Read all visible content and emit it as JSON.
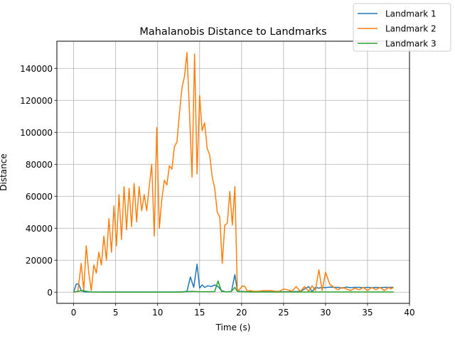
{
  "chart_data": {
    "type": "line",
    "title": "Mahalanobis Distance to Landmarks",
    "xlabel": "Time (s)",
    "ylabel": "Distance",
    "xlim": [
      -2,
      40
    ],
    "ylim": [
      -7000,
      157000
    ],
    "xticks": [
      0,
      5,
      10,
      15,
      20,
      25,
      30,
      35,
      40
    ],
    "yticks": [
      0,
      20000,
      40000,
      60000,
      80000,
      100000,
      120000,
      140000
    ],
    "grid": true,
    "legend": "top-right",
    "series": [
      {
        "name": "Landmark 1",
        "color": "#1f77b4",
        "x": [
          0,
          0.3,
          0.6,
          0.9,
          1.2,
          1.5,
          2,
          3,
          4,
          5,
          6,
          7,
          8,
          9,
          10,
          11,
          12,
          13,
          13.5,
          13.9,
          14.3,
          14.7,
          15.0,
          15.3,
          15.6,
          16.0,
          16.4,
          16.8,
          17.2,
          17.6,
          18.0,
          18.4,
          18.8,
          19.2,
          19.5,
          19.8,
          20.2,
          20.6,
          21,
          22,
          23,
          24,
          25,
          26,
          27,
          27.5,
          28,
          28.4,
          28.8,
          29.2,
          29.6,
          30,
          30.5,
          31,
          31.5,
          32,
          32.5,
          33,
          33.5,
          34,
          34.5,
          35,
          35.5,
          36,
          36.5,
          37,
          37.5,
          37.8,
          38.1
        ],
        "y": [
          0,
          5000,
          5200,
          1000,
          200,
          100,
          100,
          100,
          100,
          100,
          100,
          100,
          100,
          100,
          100,
          100,
          100,
          200,
          500,
          9500,
          3000,
          17500,
          2500,
          4500,
          3000,
          4000,
          3500,
          4500,
          3500,
          1000,
          300,
          200,
          500,
          11000,
          700,
          500,
          400,
          300,
          300,
          200,
          200,
          200,
          300,
          300,
          500,
          2000,
          3500,
          300,
          3000,
          2500,
          3000,
          2800,
          3200,
          3000,
          3000,
          2500,
          3200,
          2800,
          3000,
          3000,
          2800,
          3000,
          2800,
          3000,
          2800,
          3000,
          3000,
          3000,
          3000
        ]
      },
      {
        "name": "Landmark 2",
        "color": "#ff7f0e",
        "x": [
          0,
          0.5,
          0.9,
          1.2,
          1.5,
          1.8,
          2.1,
          2.4,
          2.7,
          3.0,
          3.3,
          3.6,
          3.9,
          4.2,
          4.5,
          4.8,
          5.1,
          5.4,
          5.7,
          6.0,
          6.3,
          6.6,
          6.9,
          7.2,
          7.5,
          7.8,
          8.1,
          8.4,
          8.7,
          9.0,
          9.3,
          9.6,
          9.9,
          10.2,
          10.5,
          10.8,
          11.1,
          11.4,
          11.7,
          12.0,
          12.3,
          12.6,
          12.9,
          13.2,
          13.5,
          13.8,
          14.1,
          14.4,
          14.7,
          15.0,
          15.3,
          15.6,
          15.9,
          16.2,
          16.5,
          16.8,
          17.1,
          17.4,
          17.7,
          18.0,
          18.3,
          18.6,
          18.9,
          19.2,
          19.5,
          19.8,
          20.1,
          20.4,
          20.7,
          21.0,
          21.5,
          22,
          22.5,
          23,
          23.5,
          24,
          24.5,
          25,
          25.5,
          26,
          26.5,
          27,
          27.5,
          28,
          28.4,
          28.8,
          29.2,
          29.6,
          30,
          30.5,
          31,
          31.5,
          32,
          32.5,
          33,
          33.5,
          34,
          34.5,
          35,
          35.5,
          36,
          36.5,
          37,
          37.5,
          37.8,
          38.1
        ],
        "y": [
          0,
          500,
          18000,
          1000,
          29000,
          12000,
          1000,
          17000,
          12000,
          25000,
          17000,
          35000,
          20000,
          46000,
          25000,
          54000,
          29000,
          61000,
          33000,
          66000,
          39000,
          65000,
          41000,
          68000,
          44000,
          66000,
          51000,
          61000,
          51000,
          66000,
          80000,
          35000,
          103000,
          40000,
          58000,
          70000,
          67000,
          79000,
          77000,
          91000,
          94000,
          112000,
          128000,
          135000,
          150000,
          112000,
          72000,
          149000,
          74000,
          123000,
          101000,
          106000,
          90000,
          86000,
          72000,
          65000,
          50000,
          47000,
          18000,
          42000,
          43000,
          63000,
          42000,
          66000,
          500,
          2000,
          4000,
          3500,
          500,
          1000,
          500,
          500,
          1000,
          1000,
          1000,
          500,
          500,
          2000,
          1500,
          500,
          3500,
          500,
          3500,
          500,
          4000,
          1000,
          14000,
          1000,
          12500,
          5000,
          3000,
          1500,
          3000,
          2000,
          1000,
          2500,
          1500,
          3000,
          1000,
          3000,
          1500,
          3000,
          1000,
          3000,
          2000,
          3000
        ]
      },
      {
        "name": "Landmark 3",
        "color": "#2ca02c",
        "x": [
          0,
          1,
          2,
          4,
          6,
          8,
          10,
          12,
          13,
          14,
          15,
          16,
          16.8,
          17.2,
          17.6,
          18.0,
          18.4,
          18.8,
          19.2,
          19.5,
          19.8,
          20.2,
          21,
          22,
          24,
          26,
          28,
          30,
          32,
          34,
          36,
          38.1
        ],
        "y": [
          0,
          1000,
          100,
          0,
          0,
          0,
          0,
          0,
          100,
          500,
          300,
          300,
          400,
          7000,
          500,
          300,
          200,
          500,
          3000,
          500,
          300,
          200,
          100,
          100,
          100,
          100,
          100,
          100,
          100,
          100,
          100,
          100
        ]
      }
    ]
  }
}
